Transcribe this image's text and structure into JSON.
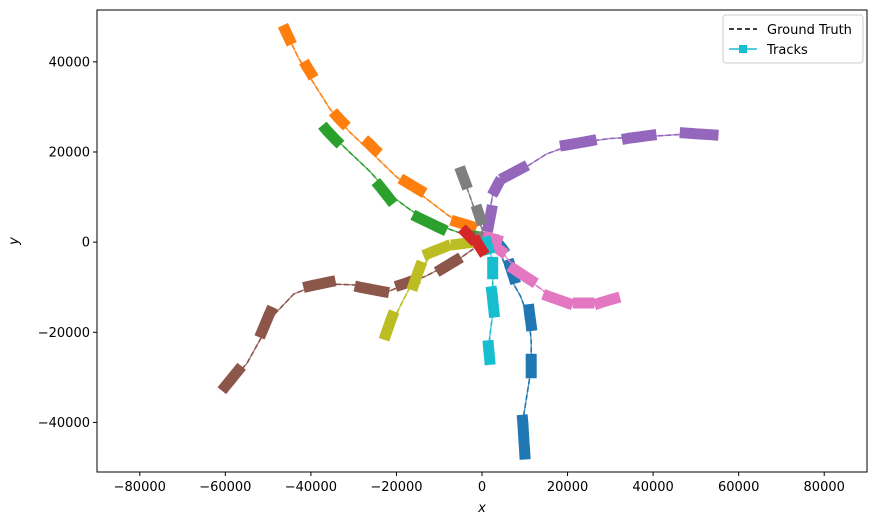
{
  "chart_data": {
    "type": "line",
    "title": "",
    "xlabel": "x",
    "ylabel": "y",
    "xlim": [
      -90000,
      90000
    ],
    "ylim": [
      -51000,
      51500
    ],
    "xticks": [
      -80000,
      -60000,
      -40000,
      -20000,
      0,
      20000,
      40000,
      60000,
      80000
    ],
    "yticks": [
      -40000,
      -20000,
      0,
      20000,
      40000
    ],
    "xtick_labels": [
      "−80000",
      "−60000",
      "−40000",
      "−20000",
      "0",
      "20000",
      "40000",
      "60000",
      "80000"
    ],
    "ytick_labels": [
      "−40000",
      "−20000",
      "0",
      "20000",
      "40000"
    ],
    "grid": false,
    "legend": {
      "position": "top-right",
      "entries": [
        {
          "label": "Ground Truth",
          "style": "dashed",
          "color": "#000000"
        },
        {
          "label": "Tracks",
          "style": "solid-square",
          "color": "#17becf"
        }
      ]
    },
    "series": [
      {
        "color": "#ff7f0e",
        "truth": [
          [
            -46000,
            47000
          ],
          [
            -43000,
            41000
          ],
          [
            -39500,
            35500
          ],
          [
            -35500,
            29500
          ],
          [
            -31000,
            24500
          ],
          [
            -26000,
            20000
          ],
          [
            -20000,
            14500
          ],
          [
            -13500,
            10000
          ],
          [
            -8000,
            6000
          ],
          [
            -3000,
            3000
          ],
          [
            0,
            800
          ]
        ],
        "tracks": [
          [
            -46000,
            47000
          ],
          [
            -45000,
            45000
          ]
        ],
        "extra_tracks": [
          [
            [
              -41000,
              39000
            ],
            [
              -40000,
              37500
            ]
          ],
          [
            [
              -34000,
              28000
            ],
            [
              -32500,
              26500
            ]
          ],
          [
            [
              -26500,
              22000
            ],
            [
              -25000,
              20500
            ]
          ],
          [
            [
              -18000,
              13500
            ],
            [
              -14500,
              11500
            ]
          ],
          [
            [
              -6000,
              4500
            ],
            [
              -2500,
              3500
            ]
          ]
        ]
      },
      {
        "color": "#2ca02c",
        "truth": [
          [
            -36500,
            25000
          ],
          [
            -31000,
            20000
          ],
          [
            -26000,
            15500
          ],
          [
            -21500,
            10500
          ],
          [
            -16500,
            7000
          ],
          [
            -11000,
            4000
          ],
          [
            -5000,
            2000
          ],
          [
            0,
            900
          ],
          [
            3000,
            400
          ]
        ],
        "tracks": [
          [
            -36500,
            25000
          ],
          [
            -34000,
            22500
          ]
        ],
        "extra_tracks": [
          [
            [
              -24000,
              12500
            ],
            [
              -21500,
              9500
            ]
          ],
          [
            [
              -15000,
              5500
            ],
            [
              -9500,
              3000
            ]
          ],
          [
            [
              -3000,
              1500
            ],
            [
              2500,
              700
            ]
          ]
        ]
      },
      {
        "color": "#9467bd",
        "truth": [
          [
            1500,
            5000
          ],
          [
            2500,
            10500
          ],
          [
            5000,
            14000
          ],
          [
            10000,
            16500
          ],
          [
            15000,
            19500
          ],
          [
            22000,
            22000
          ],
          [
            30000,
            23000
          ],
          [
            40000,
            23500
          ],
          [
            48000,
            24000
          ],
          [
            55000,
            23800
          ]
        ],
        "tracks": [
          [
            1500,
            3500
          ],
          [
            2200,
            7000
          ]
        ],
        "extra_tracks": [
          [
            [
              3000,
              11500
            ],
            [
              3800,
              13000
            ]
          ],
          [
            [
              5500,
              14500
            ],
            [
              9500,
              16500
            ]
          ],
          [
            [
              19500,
              21500
            ],
            [
              25500,
              22500
            ]
          ],
          [
            [
              34000,
              23000
            ],
            [
              39500,
              23700
            ]
          ],
          [
            [
              47500,
              24200
            ],
            [
              54000,
              23800
            ]
          ]
        ]
      },
      {
        "color": "#7f7f7f",
        "truth": [
          [
            -4800,
            15500
          ],
          [
            -3500,
            12000
          ],
          [
            -2000,
            8000
          ],
          [
            0,
            3000
          ],
          [
            500,
            0
          ]
        ],
        "tracks": [
          [
            -4800,
            15500
          ],
          [
            -3800,
            13000
          ]
        ],
        "extra_tracks": [
          [
            [
              -1000,
              7000
            ],
            [
              -300,
              5000
            ]
          ],
          [
            [
              -500,
              1000
            ],
            [
              400,
              -500
            ]
          ]
        ]
      },
      {
        "color": "#1f77b4",
        "truth": [
          [
            3500,
            0
          ],
          [
            6000,
            -7000
          ],
          [
            9000,
            -12000
          ],
          [
            11000,
            -17000
          ],
          [
            11500,
            -22000
          ],
          [
            11500,
            -28000
          ],
          [
            10500,
            -34000
          ],
          [
            9500,
            -40000
          ],
          [
            10000,
            -46500
          ]
        ],
        "tracks": [
          [
            3500,
            0
          ],
          [
            4800,
            -1500
          ]
        ],
        "extra_tracks": [
          [
            [
              6500,
              -5000
            ],
            [
              7500,
              -8000
            ]
          ],
          [
            [
              11000,
              -15000
            ],
            [
              11500,
              -18500
            ]
          ],
          [
            [
              11500,
              -26000
            ],
            [
              11500,
              -29000
            ]
          ],
          [
            [
              9500,
              -39500
            ],
            [
              10000,
              -47000
            ]
          ]
        ]
      },
      {
        "color": "#e377c2",
        "truth": [
          [
            3500,
            -1000
          ],
          [
            8500,
            -6500
          ],
          [
            12500,
            -9500
          ],
          [
            16000,
            -12000
          ],
          [
            20000,
            -13500
          ],
          [
            25000,
            -13500
          ],
          [
            31000,
            -13000
          ]
        ],
        "tracks": [
          [
            2500,
            -500
          ],
          [
            4500,
            -2000
          ]
        ],
        "extra_tracks": [
          [
            [
              7500,
              -6000
            ],
            [
              11500,
              -8500
            ]
          ],
          [
            [
              15500,
              -12000
            ],
            [
              20000,
              -13500
            ]
          ],
          [
            [
              22500,
              -13500
            ],
            [
              25000,
              -13500
            ]
          ],
          [
            [
              27500,
              -13500
            ],
            [
              31000,
              -12500
            ]
          ],
          [
            [
              1500,
              1000
            ],
            [
              3500,
              500
            ]
          ]
        ]
      },
      {
        "color": "#17becf",
        "truth": [
          [
            1000,
            0
          ],
          [
            2500,
            -4000
          ],
          [
            2500,
            -10000
          ],
          [
            2500,
            -16000
          ],
          [
            1800,
            -21000
          ],
          [
            1500,
            -26000
          ]
        ],
        "tracks": [
          [
            1000,
            0
          ],
          [
            1500,
            -1500
          ]
        ],
        "extra_tracks": [
          [
            [
              2500,
              -4500
            ],
            [
              2500,
              -7000
            ]
          ],
          [
            [
              2300,
              -11000
            ],
            [
              2800,
              -15500
            ]
          ],
          [
            [
              1500,
              -23000
            ],
            [
              1800,
              -26000
            ]
          ]
        ]
      },
      {
        "color": "#8c564b",
        "truth": [
          [
            -60000,
            -32000
          ],
          [
            -55000,
            -27000
          ],
          [
            -51500,
            -21000
          ],
          [
            -48500,
            -16000
          ],
          [
            -44000,
            -11500
          ],
          [
            -38000,
            -9200
          ],
          [
            -30000,
            -9500
          ],
          [
            -22000,
            -11000
          ],
          [
            -17000,
            -9000
          ],
          [
            -13000,
            -7500
          ],
          [
            -9000,
            -5500
          ],
          [
            -5000,
            -3500
          ],
          [
            -2000,
            -1500
          ]
        ],
        "tracks": [
          [
            -60000,
            -32000
          ],
          [
            -57000,
            -28500
          ]
        ],
        "extra_tracks": [
          [
            [
              -51500,
              -20000
            ],
            [
              -49500,
              -15500
            ]
          ],
          [
            [
              -40500,
              -9800
            ],
            [
              -35500,
              -8800
            ]
          ],
          [
            [
              -28500,
              -10000
            ],
            [
              -23000,
              -11000
            ]
          ],
          [
            [
              -19000,
              -9500
            ],
            [
              -16000,
              -8500
            ]
          ],
          [
            [
              -9500,
              -6000
            ],
            [
              -6000,
              -4000
            ]
          ]
        ]
      },
      {
        "color": "#bcbd22",
        "truth": [
          [
            -22500,
            -20500
          ],
          [
            -19000,
            -14000
          ],
          [
            -15500,
            -7500
          ],
          [
            -11500,
            -2500
          ],
          [
            -7500,
            -1000
          ],
          [
            -3000,
            -200
          ],
          [
            0,
            0
          ]
        ],
        "tracks": [
          [
            -22500,
            -20500
          ],
          [
            -21000,
            -16500
          ]
        ],
        "extra_tracks": [
          [
            [
              -16000,
              -9500
            ],
            [
              -14500,
              -5500
            ]
          ],
          [
            [
              -12500,
              -2500
            ],
            [
              -8500,
              -1000
            ]
          ],
          [
            [
              -6000,
              -500
            ],
            [
              -2000,
              0
            ]
          ]
        ]
      },
      {
        "color": "#d62728",
        "truth": [
          [
            -3500,
            2000
          ],
          [
            -1500,
            0
          ],
          [
            0,
            -1500
          ]
        ],
        "tracks": [
          [
            -3800,
            2200
          ],
          [
            -2500,
            900
          ]
        ],
        "extra_tracks": [
          [
            [
              -1200,
              0
            ],
            [
              0,
              -1800
            ]
          ]
        ]
      }
    ]
  }
}
